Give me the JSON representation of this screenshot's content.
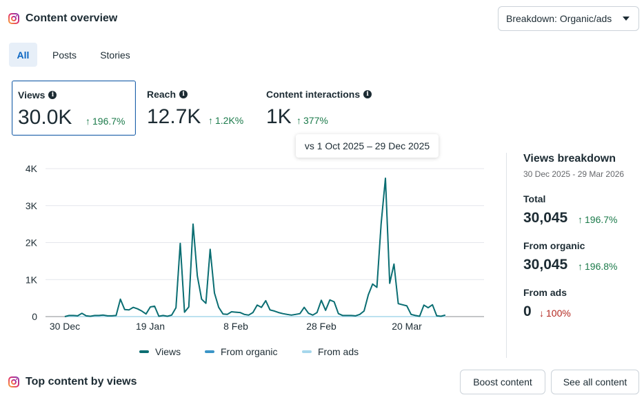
{
  "header": {
    "title": "Content overview",
    "breakdown_label": "Breakdown: Organic/ads"
  },
  "tabs": [
    {
      "label": "All"
    },
    {
      "label": "Posts"
    },
    {
      "label": "Stories"
    }
  ],
  "metrics": [
    {
      "label": "Views",
      "value": "30.0K",
      "change": "196.7%"
    },
    {
      "label": "Reach",
      "value": "12.7K",
      "change": "1.2K%"
    },
    {
      "label": "Content interactions",
      "value": "1K",
      "change": "377%"
    }
  ],
  "tooltip": "vs 1 Oct 2025 – 29 Dec 2025",
  "breakdown": {
    "title": "Views breakdown",
    "range": "30 Dec 2025 - 29 Mar 2026",
    "total_label": "Total",
    "total_value": "30,045",
    "total_change": "196.7%",
    "organic_label": "From organic",
    "organic_value": "30,045",
    "organic_change": "196.8%",
    "ads_label": "From ads",
    "ads_value": "0",
    "ads_change": "100%"
  },
  "colors": {
    "views": "#0b6e72",
    "organic": "#3b95c7",
    "ads": "#a6d7ec",
    "accent": "#0a66c2",
    "positive": "#1b7a4a",
    "negative": "#b3261e"
  },
  "footer": {
    "title": "Top content by views",
    "boost_label": "Boost content",
    "see_all_label": "See all content"
  },
  "chart_data": {
    "type": "line",
    "title": "",
    "xlabel": "",
    "ylabel": "",
    "ylim": [
      0,
      4000
    ],
    "yticks": [
      0,
      1000,
      2000,
      3000,
      4000
    ],
    "ytick_labels": [
      "0",
      "1K",
      "2K",
      "3K",
      "4K"
    ],
    "xticks": [
      {
        "index": 0,
        "label": "30 Dec"
      },
      {
        "index": 20,
        "label": "19 Jan"
      },
      {
        "index": 40,
        "label": "8 Feb"
      },
      {
        "index": 60,
        "label": "28 Feb"
      },
      {
        "index": 80,
        "label": "20 Mar"
      }
    ],
    "grid": true,
    "legend_position": "bottom",
    "series": [
      {
        "name": "Views",
        "values": [
          0,
          30,
          30,
          20,
          90,
          20,
          10,
          30,
          30,
          40,
          20,
          20,
          30,
          470,
          190,
          180,
          250,
          210,
          150,
          70,
          260,
          280,
          10,
          30,
          10,
          40,
          240,
          1980,
          120,
          260,
          2500,
          1100,
          470,
          360,
          1820,
          640,
          250,
          70,
          60,
          130,
          120,
          110,
          60,
          40,
          110,
          310,
          250,
          430,
          180,
          150,
          110,
          80,
          60,
          40,
          60,
          80,
          250,
          90,
          40,
          110,
          440,
          170,
          450,
          400,
          80,
          30,
          30,
          30,
          20,
          60,
          150,
          590,
          880,
          790,
          2520,
          3740,
          900,
          1420,
          350,
          320,
          290,
          60,
          30,
          10,
          310,
          240,
          320,
          20,
          10,
          40
        ]
      },
      {
        "name": "From organic",
        "values": [
          0,
          30,
          30,
          20,
          90,
          20,
          10,
          30,
          30,
          40,
          20,
          20,
          30,
          470,
          190,
          180,
          250,
          210,
          150,
          70,
          260,
          280,
          10,
          30,
          10,
          40,
          240,
          1980,
          120,
          260,
          2500,
          1100,
          470,
          360,
          1820,
          640,
          250,
          70,
          60,
          130,
          120,
          110,
          60,
          40,
          110,
          310,
          250,
          430,
          180,
          150,
          110,
          80,
          60,
          40,
          60,
          80,
          250,
          90,
          40,
          110,
          440,
          170,
          450,
          400,
          80,
          30,
          30,
          30,
          20,
          60,
          150,
          590,
          880,
          790,
          2520,
          3740,
          900,
          1420,
          350,
          320,
          290,
          60,
          30,
          10,
          310,
          240,
          320,
          20,
          10,
          40
        ]
      },
      {
        "name": "From ads",
        "values": [
          0,
          0,
          0,
          0,
          0,
          0,
          0,
          0,
          0,
          0,
          0,
          0,
          0,
          0,
          0,
          0,
          0,
          0,
          0,
          0,
          0,
          0,
          0,
          0,
          0,
          0,
          0,
          0,
          0,
          0,
          0,
          0,
          0,
          0,
          0,
          0,
          0,
          0,
          0,
          0,
          0,
          0,
          0,
          0,
          0,
          0,
          0,
          0,
          0,
          0,
          0,
          0,
          0,
          0,
          0,
          0,
          0,
          0,
          0,
          0,
          0,
          0,
          0,
          0,
          0,
          0,
          0,
          0,
          0,
          0,
          0,
          0,
          0,
          0,
          0,
          0,
          0,
          0,
          0,
          0,
          0,
          0,
          0,
          0,
          0,
          0,
          0,
          0,
          0,
          0
        ]
      }
    ]
  }
}
